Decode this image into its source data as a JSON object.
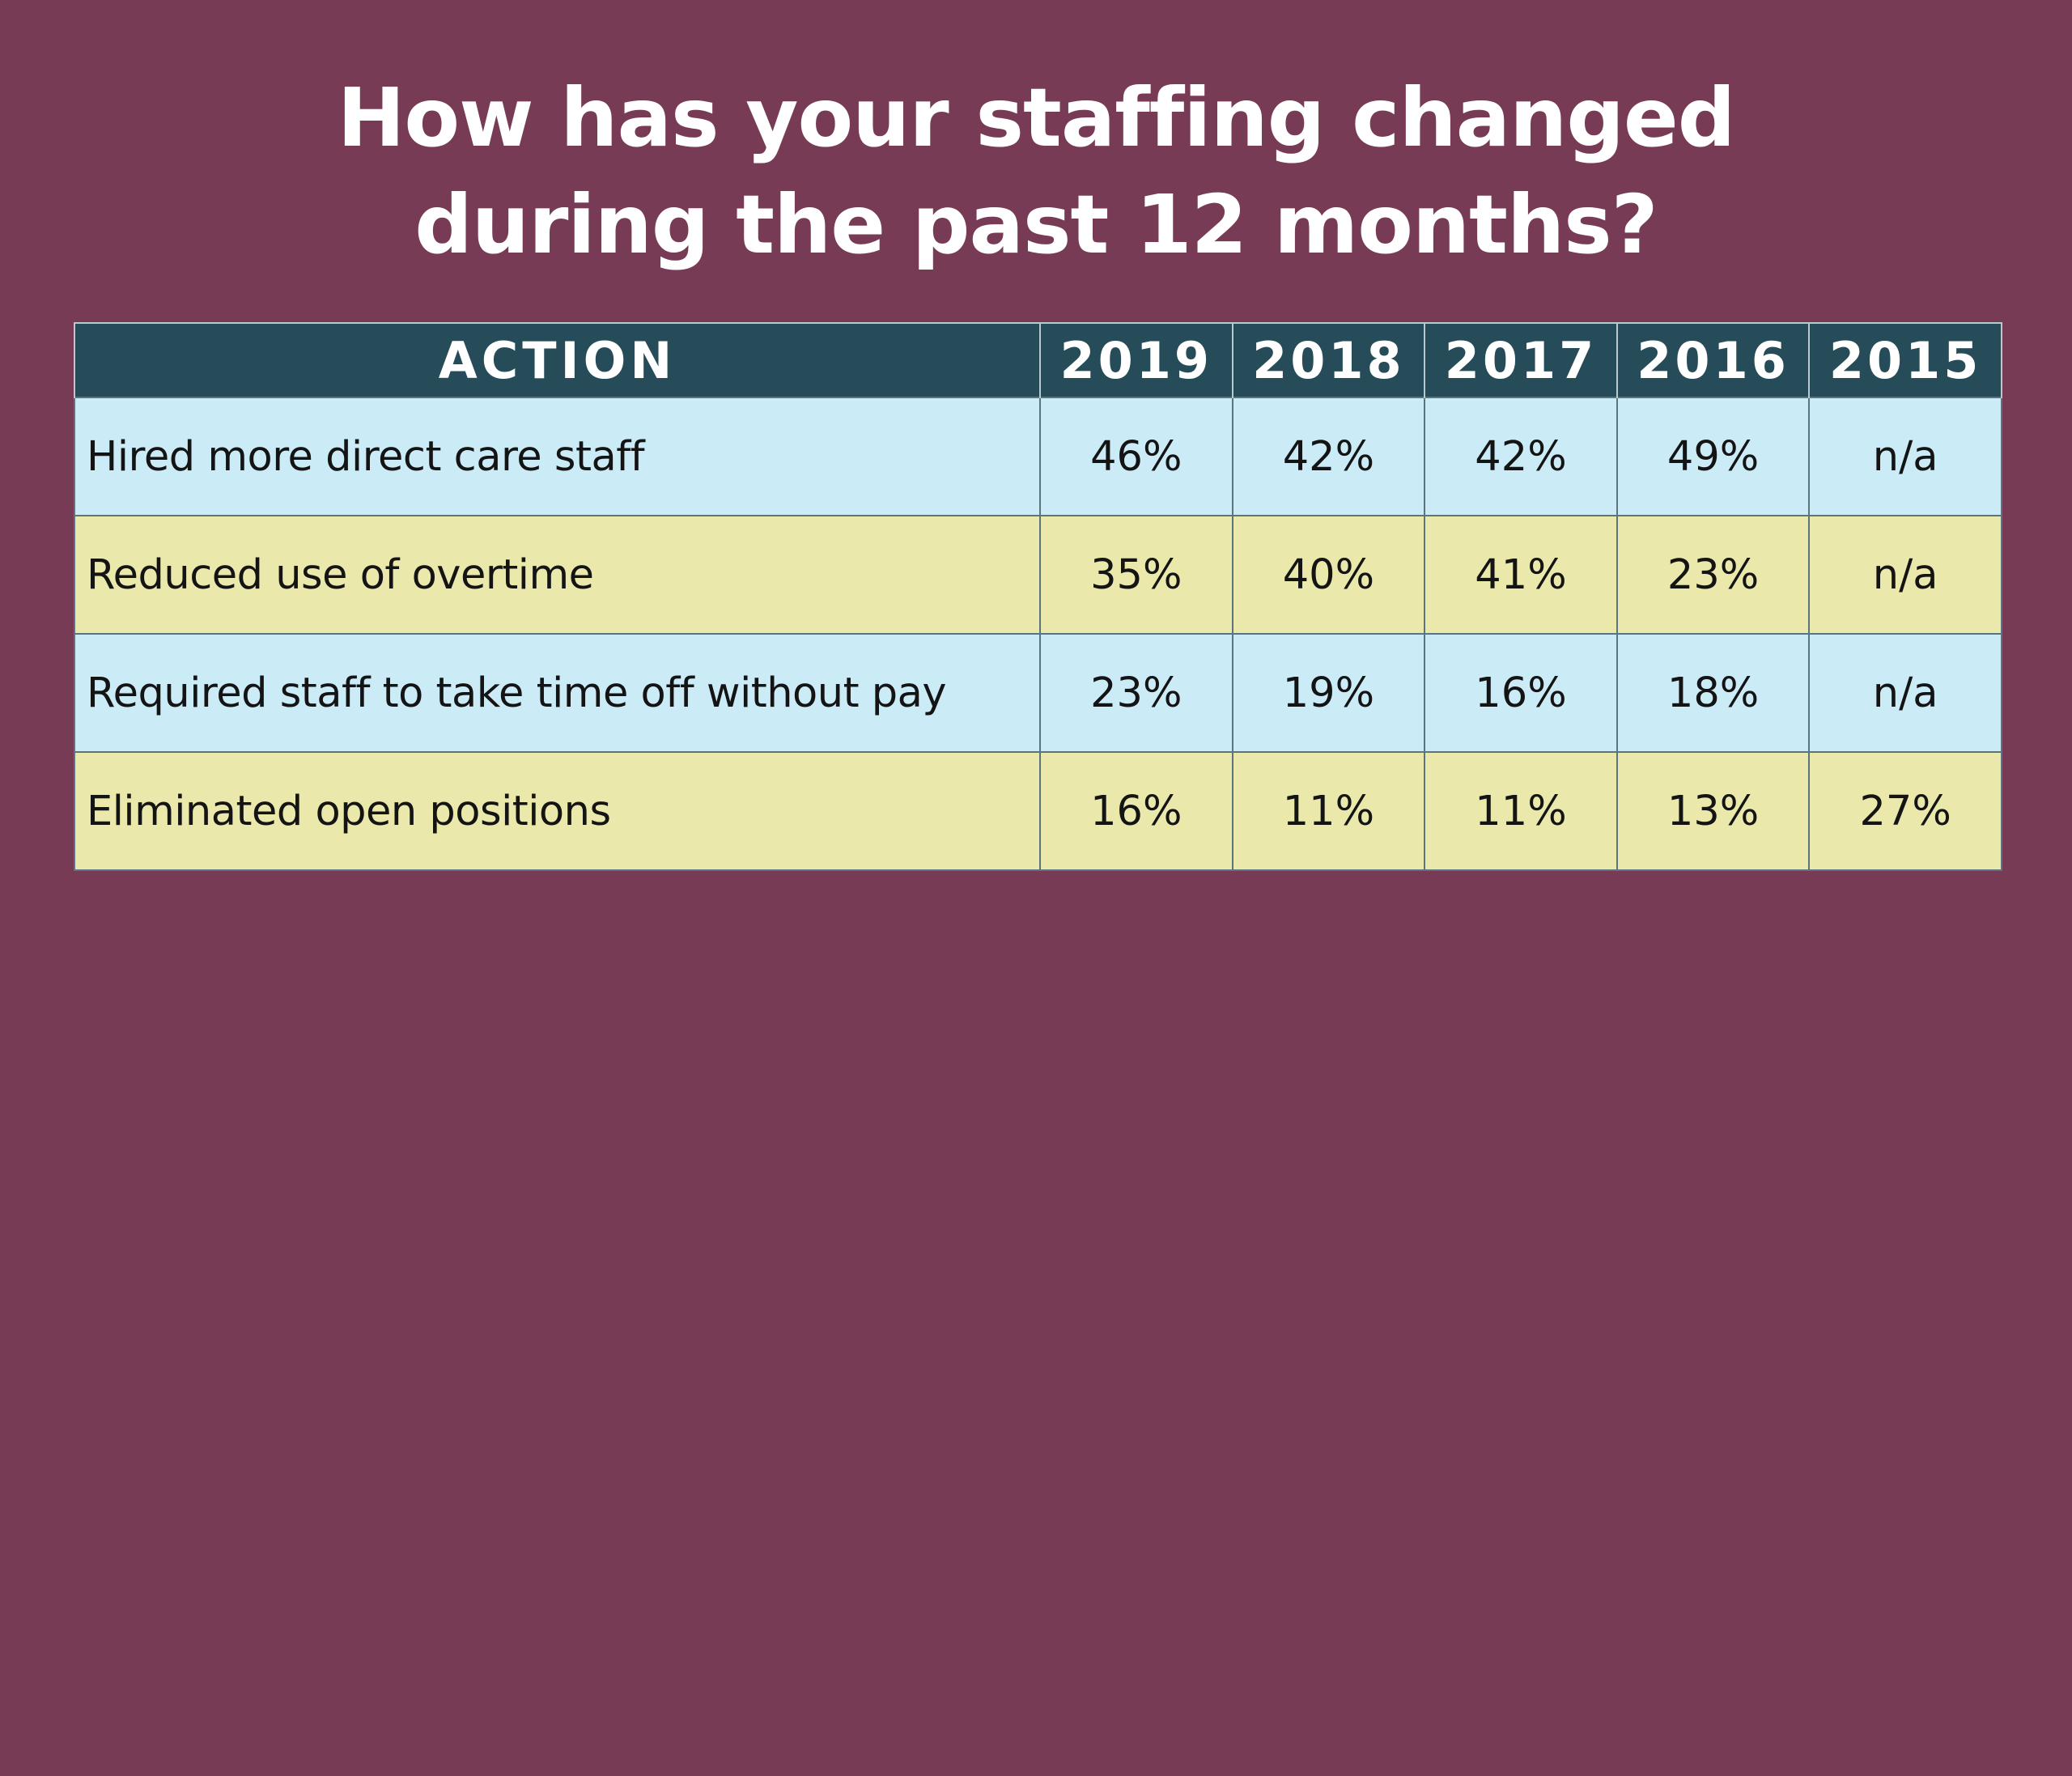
{
  "title": {
    "line1": "How has your staffing changed",
    "line2": "during the past 12 months?"
  },
  "colors": {
    "background": "#783b55",
    "header": "#264c59",
    "row_blue": "#cbebf7",
    "row_yellow": "#eae8ab"
  },
  "chart_data": {
    "type": "table",
    "title": "How has your staffing changed during the past 12 months?",
    "columns": [
      "ACTION",
      "2019",
      "2018",
      "2017",
      "2016",
      "2015"
    ],
    "rows": [
      {
        "action": "Hired more direct care staff",
        "values": [
          "46%",
          "42%",
          "42%",
          "49%",
          "n/a"
        ]
      },
      {
        "action": "Reduced use of overtime",
        "values": [
          "35%",
          "40%",
          "41%",
          "23%",
          "n/a"
        ]
      },
      {
        "action": "Required staff to take time off without pay",
        "values": [
          "23%",
          "19%",
          "16%",
          "18%",
          "n/a"
        ]
      },
      {
        "action": "Eliminated open positions",
        "values": [
          "16%",
          "11%",
          "11%",
          "13%",
          "27%"
        ]
      }
    ]
  }
}
